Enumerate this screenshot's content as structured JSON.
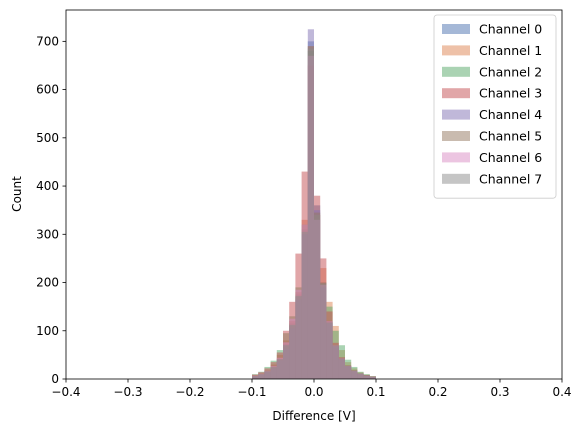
{
  "chart_data": {
    "type": "bar",
    "subtype": "overlaid-histogram",
    "title": "",
    "xlabel": "Difference [V]",
    "ylabel": "Count",
    "xlim": [
      -0.4,
      0.4
    ],
    "ylim": [
      0,
      765
    ],
    "xticks": [
      -0.4,
      -0.3,
      -0.2,
      -0.1,
      0.0,
      0.1,
      0.2,
      0.3,
      0.4
    ],
    "xtick_labels": [
      "−0.4",
      "−0.3",
      "−0.2",
      "−0.1",
      "0.0",
      "0.1",
      "0.2",
      "0.3",
      "0.4"
    ],
    "yticks": [
      0,
      100,
      200,
      300,
      400,
      500,
      600,
      700
    ],
    "ytick_labels": [
      "0",
      "100",
      "200",
      "300",
      "400",
      "500",
      "600",
      "700"
    ],
    "grid": false,
    "legend_position": "top-right",
    "bin_width": 0.01,
    "bin_centers": [
      -0.095,
      -0.085,
      -0.075,
      -0.065,
      -0.055,
      -0.045,
      -0.035,
      -0.025,
      -0.015,
      -0.005,
      0.005,
      0.015,
      0.025,
      0.035,
      0.045,
      0.055,
      0.065,
      0.075,
      0.085,
      0.095
    ],
    "series": [
      {
        "name": "Channel 0",
        "color": "#4c72b0",
        "values": [
          6,
          10,
          16,
          24,
          40,
          68,
          110,
          170,
          300,
          700,
          360,
          200,
          120,
          70,
          44,
          28,
          18,
          12,
          8,
          5
        ]
      },
      {
        "name": "Channel 1",
        "color": "#dd8452",
        "values": [
          8,
          12,
          18,
          30,
          50,
          80,
          120,
          180,
          330,
          690,
          340,
          230,
          160,
          110,
          60,
          35,
          22,
          14,
          9,
          6
        ]
      },
      {
        "name": "Channel 2",
        "color": "#55a868",
        "values": [
          10,
          15,
          25,
          38,
          60,
          95,
          130,
          190,
          320,
          680,
          330,
          190,
          150,
          100,
          70,
          40,
          25,
          15,
          10,
          6
        ]
      },
      {
        "name": "Channel 3",
        "color": "#c44e52",
        "values": [
          9,
          14,
          22,
          35,
          55,
          100,
          160,
          260,
          430,
          650,
          380,
          250,
          140,
          75,
          45,
          28,
          18,
          11,
          8,
          5
        ]
      },
      {
        "name": "Channel 4",
        "color": "#8172b3",
        "values": [
          5,
          8,
          14,
          22,
          38,
          62,
          105,
          165,
          300,
          725,
          350,
          190,
          115,
          66,
          40,
          26,
          16,
          10,
          7,
          4
        ]
      },
      {
        "name": "Channel 5",
        "color": "#937860",
        "values": [
          6,
          10,
          16,
          26,
          42,
          72,
          115,
          175,
          310,
          690,
          345,
          200,
          118,
          70,
          42,
          27,
          17,
          11,
          7,
          5
        ]
      },
      {
        "name": "Channel 6",
        "color": "#da8bc3",
        "values": [
          7,
          11,
          17,
          27,
          44,
          76,
          125,
          185,
          320,
          670,
          330,
          195,
          120,
          70,
          43,
          27,
          17,
          11,
          7,
          5
        ]
      },
      {
        "name": "Channel 7",
        "color": "#8c8c8c",
        "values": [
          6,
          10,
          16,
          25,
          41,
          70,
          112,
          172,
          305,
          685,
          340,
          198,
          117,
          69,
          42,
          27,
          17,
          11,
          7,
          5
        ]
      }
    ]
  }
}
